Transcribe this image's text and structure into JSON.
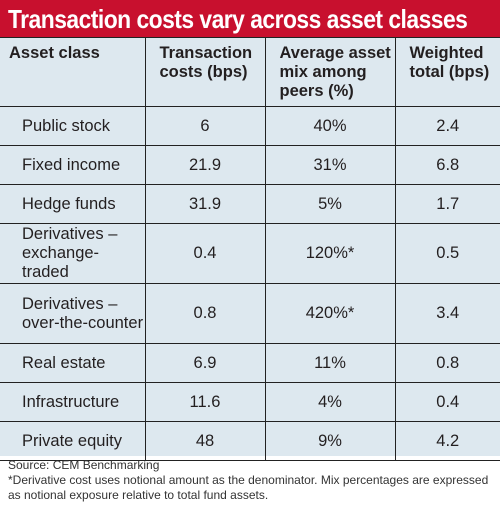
{
  "title": "Transaction costs vary across asset classes",
  "colors": {
    "title_bg": "#c8102e",
    "table_bg": "#dde8ef",
    "grid": "#222222"
  },
  "chart_data": {
    "type": "table",
    "title": "Transaction costs vary across asset classes",
    "columns": [
      "Asset class",
      "Transaction costs (bps)",
      "Average asset mix among peers (%)",
      "Weighted total (bps)"
    ],
    "rows": [
      [
        "Public stock",
        "6",
        "40%",
        "2.4"
      ],
      [
        "Fixed income",
        "21.9",
        "31%",
        "6.8"
      ],
      [
        "Hedge funds",
        "31.9",
        "5%",
        "1.7"
      ],
      [
        "Derivatives – exchange-traded",
        "0.4",
        "120%*",
        "0.5"
      ],
      [
        "Derivatives – over-the-counter",
        "0.8",
        "420%*",
        "3.4"
      ],
      [
        "Real estate",
        "6.9",
        "11%",
        "0.8"
      ],
      [
        "Infrastructure",
        "11.6",
        "4%",
        "0.4"
      ],
      [
        "Private equity",
        "48",
        "9%",
        "4.2"
      ]
    ]
  },
  "footer": {
    "source": "Source: CEM Benchmarking",
    "note": "*Derivative cost uses notional amount as the denominator. Mix percentages are expressed as notional exposure relative to total fund assets."
  }
}
